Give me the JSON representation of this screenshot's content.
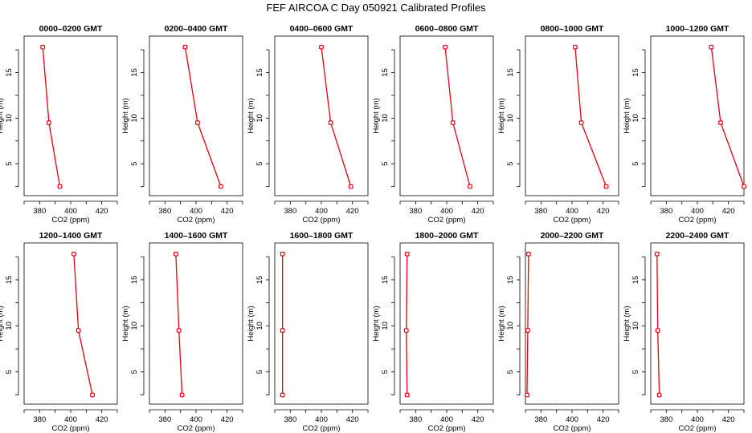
{
  "title": "FEF AIRCOA C  Day 050921  Calibrated Profiles",
  "colors": {
    "profile": "#e8000f",
    "axes": "#000000"
  },
  "chart_data": [
    {
      "type": "line",
      "title": "0000–0200 GMT",
      "xlabel": "CO2 (ppm)",
      "ylabel": "Height (m)",
      "xlim": [
        370,
        430
      ],
      "ylim": [
        1.5,
        19
      ],
      "xticks": [
        "380",
        "400",
        "420"
      ],
      "yticks": [
        "5",
        "10",
        "15"
      ],
      "series": [
        {
          "x": [
            393,
            386,
            382
          ],
          "y": [
            2.5,
            9.5,
            17.8
          ]
        }
      ]
    },
    {
      "type": "line",
      "title": "0200–0400 GMT",
      "xlabel": "CO2 (ppm)",
      "ylabel": "Height (m)",
      "xlim": [
        370,
        430
      ],
      "ylim": [
        1.5,
        19
      ],
      "xticks": [
        "380",
        "400",
        "420"
      ],
      "yticks": [
        "5",
        "10",
        "15"
      ],
      "series": [
        {
          "x": [
            416,
            401,
            393
          ],
          "y": [
            2.5,
            9.5,
            17.8
          ]
        }
      ]
    },
    {
      "type": "line",
      "title": "0400–0600 GMT",
      "xlabel": "CO2 (ppm)",
      "ylabel": "Height (m)",
      "xlim": [
        370,
        430
      ],
      "ylim": [
        1.5,
        19
      ],
      "xticks": [
        "380",
        "400",
        "420"
      ],
      "yticks": [
        "5",
        "10",
        "15"
      ],
      "series": [
        {
          "x": [
            419,
            406,
            400
          ],
          "y": [
            2.5,
            9.5,
            17.8
          ]
        }
      ]
    },
    {
      "type": "line",
      "title": "0600–0800 GMT",
      "xlabel": "CO2 (ppm)",
      "ylabel": "Height (m)",
      "xlim": [
        370,
        430
      ],
      "ylim": [
        1.5,
        19
      ],
      "xticks": [
        "380",
        "400",
        "420"
      ],
      "yticks": [
        "5",
        "10",
        "15"
      ],
      "series": [
        {
          "x": [
            415,
            404,
            399
          ],
          "y": [
            2.5,
            9.5,
            17.8
          ]
        }
      ]
    },
    {
      "type": "line",
      "title": "0800–1000 GMT",
      "xlabel": "CO2 (ppm)",
      "ylabel": "Height (m)",
      "xlim": [
        370,
        430
      ],
      "ylim": [
        1.5,
        19
      ],
      "xticks": [
        "380",
        "400",
        "420"
      ],
      "yticks": [
        "5",
        "10",
        "15"
      ],
      "series": [
        {
          "x": [
            422,
            406,
            402
          ],
          "y": [
            2.5,
            9.5,
            17.8
          ]
        }
      ]
    },
    {
      "type": "line",
      "title": "1000–1200 GMT",
      "xlabel": "CO2 (ppm)",
      "ylabel": "Height (m)",
      "xlim": [
        370,
        430
      ],
      "ylim": [
        1.5,
        19
      ],
      "xticks": [
        "380",
        "400",
        "420"
      ],
      "yticks": [
        "5",
        "10",
        "15"
      ],
      "series": [
        {
          "x": [
            430,
            415,
            409
          ],
          "y": [
            2.5,
            9.5,
            17.8
          ]
        }
      ]
    },
    {
      "type": "line",
      "title": "1200–1400 GMT",
      "xlabel": "CO2 (ppm)",
      "ylabel": "Height (m)",
      "xlim": [
        370,
        430
      ],
      "ylim": [
        1.5,
        19
      ],
      "xticks": [
        "380",
        "400",
        "420"
      ],
      "yticks": [
        "5",
        "10",
        "15"
      ],
      "series": [
        {
          "x": [
            414,
            405,
            402
          ],
          "y": [
            2.5,
            9.5,
            17.8
          ]
        }
      ]
    },
    {
      "type": "line",
      "title": "1400–1600 GMT",
      "xlabel": "CO2 (ppm)",
      "ylabel": "Height (m)",
      "xlim": [
        370,
        430
      ],
      "ylim": [
        1.5,
        19
      ],
      "xticks": [
        "380",
        "400",
        "420"
      ],
      "yticks": [
        "5",
        "10",
        "15"
      ],
      "series": [
        {
          "x": [
            391,
            389,
            387
          ],
          "y": [
            2.5,
            9.5,
            17.8
          ]
        }
      ]
    },
    {
      "type": "line",
      "title": "1600–1800 GMT",
      "xlabel": "CO2 (ppm)",
      "ylabel": "Height (m)",
      "xlim": [
        370,
        430
      ],
      "ylim": [
        1.5,
        19
      ],
      "xticks": [
        "380",
        "400",
        "420"
      ],
      "yticks": [
        "5",
        "10",
        "15"
      ],
      "series": [
        {
          "x": [
            375,
            375,
            375
          ],
          "y": [
            2.5,
            9.5,
            17.8
          ]
        }
      ]
    },
    {
      "type": "line",
      "title": "1800–2000 GMT",
      "xlabel": "CO2 (ppm)",
      "ylabel": "Height (m)",
      "xlim": [
        370,
        430
      ],
      "ylim": [
        1.5,
        19
      ],
      "xticks": [
        "380",
        "400",
        "420"
      ],
      "yticks": [
        "5",
        "10",
        "15"
      ],
      "series": [
        {
          "x": [
            374.5,
            374,
            374.5
          ],
          "y": [
            2.5,
            9.5,
            17.8
          ]
        }
      ]
    },
    {
      "type": "line",
      "title": "2000–2200 GMT",
      "xlabel": "CO2 (ppm)",
      "ylabel": "Height (m)",
      "xlim": [
        370,
        430
      ],
      "ylim": [
        1.5,
        19
      ],
      "xticks": [
        "380",
        "400",
        "420"
      ],
      "yticks": [
        "5",
        "10",
        "15"
      ],
      "series": [
        {
          "x": [
            371,
            371.5,
            372
          ],
          "y": [
            2.5,
            9.5,
            17.8
          ]
        }
      ]
    },
    {
      "type": "line",
      "title": "2200–2400 GMT",
      "xlabel": "CO2 (ppm)",
      "ylabel": "Height (m)",
      "xlim": [
        370,
        430
      ],
      "ylim": [
        1.5,
        19
      ],
      "xticks": [
        "380",
        "400",
        "420"
      ],
      "yticks": [
        "5",
        "10",
        "15"
      ],
      "series": [
        {
          "x": [
            375.5,
            374.5,
            374
          ],
          "y": [
            2.5,
            9.5,
            17.8
          ]
        }
      ]
    }
  ]
}
